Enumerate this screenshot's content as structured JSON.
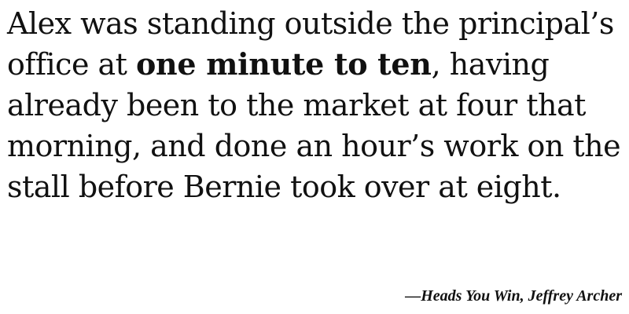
{
  "quote": {
    "before": "Alex was standing outside the principal’s office at ",
    "emphasis": "one minute to ten",
    "after": ", having already been to the market at four that morning, and done an hour’s work on the stall before Bernie took over at eight."
  },
  "attribution": {
    "dash": "—",
    "title": "Heads You Win",
    "separator": ", ",
    "author": "Jeffrey Archer"
  }
}
